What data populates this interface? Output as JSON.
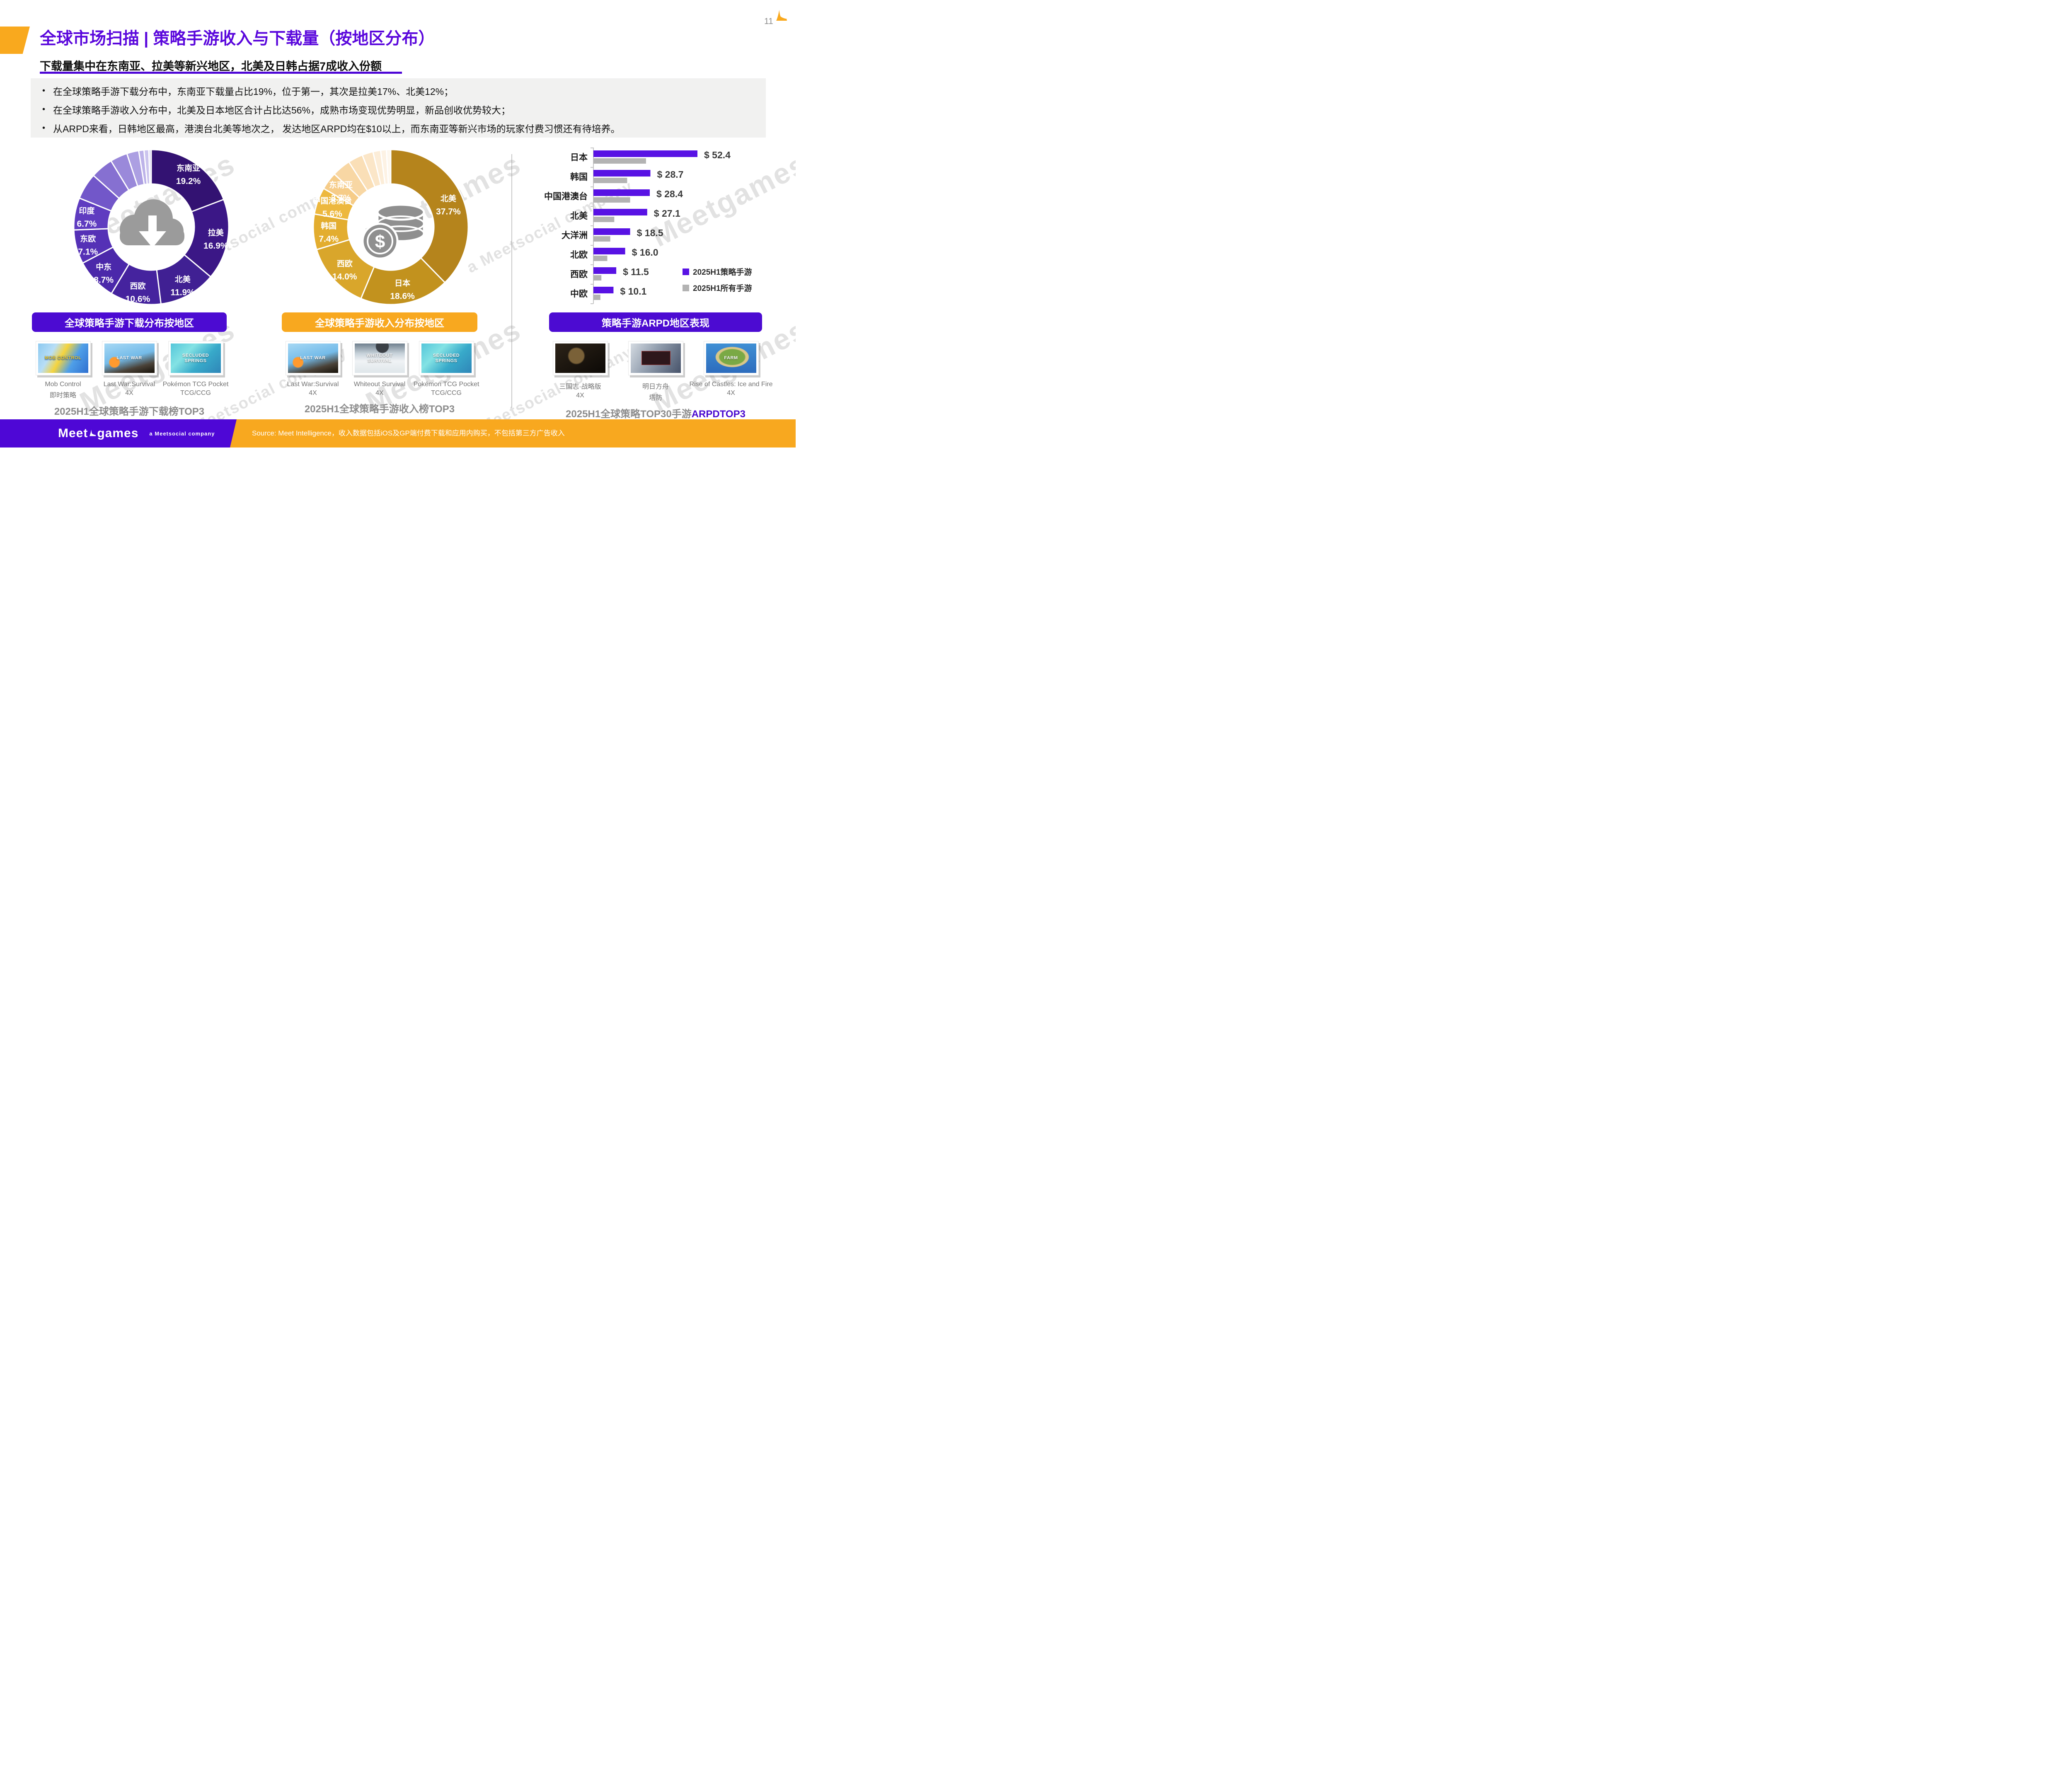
{
  "page_number": "11",
  "header": {
    "title": "全球市场扫描 | 策略手游收入与下载量（按地区分布）",
    "subtitle": "下载量集中在东南亚、拉美等新兴地区，北美及日韩占据7成收入份额"
  },
  "bullets": [
    "在全球策略手游下载分布中，东南亚下载量占比19%，位于第一，其次是拉美17%、北美12%；",
    "在全球策略手游收入分布中，北美及日本地区合计占比达56%，成熟市场变现优势明显，新品创收优势较大；",
    "从ARPD来看，日韩地区最高，港澳台北美等地次之， 发达地区ARPD均在$10以上，而东南亚等新兴市场的玩家付费习惯还有待培养。"
  ],
  "watermark": {
    "brand": "Meetgames",
    "sub": "a Meetsocial company"
  },
  "chart_data": [
    {
      "type": "pie",
      "subtype": "donut",
      "title": "全球策略手游下载分布按地区",
      "center_icon": "download-cloud",
      "slices": [
        {
          "name": "东南亚",
          "value": 19.2,
          "label": "19.2%",
          "color": "#331272"
        },
        {
          "name": "拉美",
          "value": 16.9,
          "label": "16.9%",
          "color": "#3B1786"
        },
        {
          "name": "北美",
          "value": 11.9,
          "label": "11.9%",
          "color": "#402093"
        },
        {
          "name": "西欧",
          "value": 10.6,
          "label": "10.6%",
          "color": "#45239E"
        },
        {
          "name": "中东",
          "value": 8.7,
          "label": "8.7%",
          "color": "#4B28AA"
        },
        {
          "name": "东欧",
          "value": 7.1,
          "label": "7.1%",
          "color": "#5531B6"
        },
        {
          "name": "印度",
          "value": 6.7,
          "label": "6.7%",
          "color": "#5F3CC0"
        },
        {
          "value": 5.5,
          "color": "#7257C9"
        },
        {
          "value": 4.7,
          "color": "#8670D1"
        },
        {
          "value": 3.6,
          "color": "#9A89DA"
        },
        {
          "value": 2.5,
          "color": "#AC9FE2"
        },
        {
          "value": 1.1,
          "color": "#BDB3E9"
        },
        {
          "value": 1.0,
          "color": "#CBC4EE"
        },
        {
          "value": 0.5,
          "color": "#D8D3F3"
        }
      ]
    },
    {
      "type": "pie",
      "subtype": "donut",
      "title": "全球策略手游收入分布按地区",
      "center_icon": "dollar-coins",
      "slices": [
        {
          "name": "北美",
          "value": 37.7,
          "label": "37.7%",
          "color": "#B5841C"
        },
        {
          "name": "日本",
          "value": 18.6,
          "label": "18.6%",
          "color": "#C2921E"
        },
        {
          "name": "西欧",
          "value": 14.0,
          "label": "14.0%",
          "color": "#D9A62B"
        },
        {
          "name": "韩国",
          "value": 7.4,
          "label": "7.4%",
          "color": "#E3AD2F"
        },
        {
          "name": "中国港澳台",
          "value": 5.6,
          "label": "5.6%",
          "color": "#EDB83E"
        },
        {
          "name": "东南亚",
          "value": 3.7,
          "label": "3.7%",
          "color": "#F6CC88"
        },
        {
          "value": 3.9,
          "color": "#F8D7A4"
        },
        {
          "value": 3.1,
          "color": "#FADFB7"
        },
        {
          "value": 2.3,
          "color": "#FBE6C8"
        },
        {
          "value": 1.6,
          "color": "#FCEDD8"
        },
        {
          "value": 1.2,
          "color": "#FDF2E4"
        },
        {
          "value": 0.9,
          "color": "#FEF7EE"
        }
      ]
    },
    {
      "type": "bar",
      "orientation": "horizontal",
      "title": "策略手游ARPD地区表现",
      "categories": [
        "日本",
        "韩国",
        "中国港澳台",
        "北美",
        "大洋洲",
        "北欧",
        "西欧",
        "中欧"
      ],
      "xlim": [
        0,
        60
      ],
      "legend_position": "bottom-right",
      "series": [
        {
          "name": "2025H1策略手游",
          "color": "#5812E4",
          "values": [
            52.4,
            28.7,
            28.4,
            27.1,
            18.5,
            16.0,
            11.5,
            10.1
          ],
          "value_labels": [
            "$ 52.4",
            "$ 28.7",
            "$ 28.4",
            "$ 27.1",
            "$ 18.5",
            "$ 16.0",
            "$ 11.5",
            "$ 10.1"
          ]
        },
        {
          "name": "2025H1所有手游",
          "color": "#B3B3B3",
          "values": [
            26.5,
            17.0,
            18.5,
            10.5,
            8.5,
            7.0,
            4.0,
            3.5
          ]
        }
      ]
    }
  ],
  "sections": [
    {
      "banner": "全球策略手游下载分布按地区",
      "caption_parts": [
        {
          "text": "2025H1全球策略手游下载榜TOP3"
        }
      ],
      "games": [
        {
          "name": "Mob Control",
          "genre": "即时策略",
          "art_text": "MOB CONTROL"
        },
        {
          "name": "Last War:Survival",
          "genre": "4X",
          "art_text": "LAST WAR"
        },
        {
          "name": "Pokémon TCG Pocket",
          "genre": "TCG/CCG",
          "art_text": "SECLUDED SPRINGS"
        }
      ]
    },
    {
      "banner": "全球策略手游收入分布按地区",
      "caption_parts": [
        {
          "text": "2025H1全球策略手游收入榜TOP3"
        }
      ],
      "games": [
        {
          "name": "Last War:Survival",
          "genre": "4X",
          "art_text": "LAST WAR"
        },
        {
          "name": "Whiteout Survival",
          "genre": "4X",
          "art_text": "WHITEOUT SURVIVAL"
        },
        {
          "name": "Pokémon TCG Pocket",
          "genre": "TCG/CCG",
          "art_text": "SECLUDED SPRINGS"
        }
      ]
    },
    {
      "banner": "策略手游ARPD地区表现",
      "caption_parts": [
        {
          "text": "2025H1全球策略TOP30手游"
        },
        {
          "text": "ARPDTOP3"
        }
      ],
      "games": [
        {
          "name": "三国志·战略版",
          "genre": "4X",
          "art_text": ""
        },
        {
          "name": "明日方舟",
          "genre": "塔防",
          "art_text": ""
        },
        {
          "name": "Rise of Castles: Ice and Fire",
          "genre": "4X",
          "art_text": "FARM"
        }
      ]
    }
  ],
  "footer": {
    "logo_left": "Meet",
    "logo_right": "games",
    "logo_sub": "a Meetsocial company",
    "source": "Source: Meet Intelligence，收入数据包括iOS及GP端付费下载和应用内购买，不包括第三方广告收入"
  },
  "colors": {
    "brand_purple": "#4C0BD2",
    "brand_gold": "#F8A81F",
    "bar_purple": "#5812E4",
    "bar_gray": "#B3B3B3"
  }
}
